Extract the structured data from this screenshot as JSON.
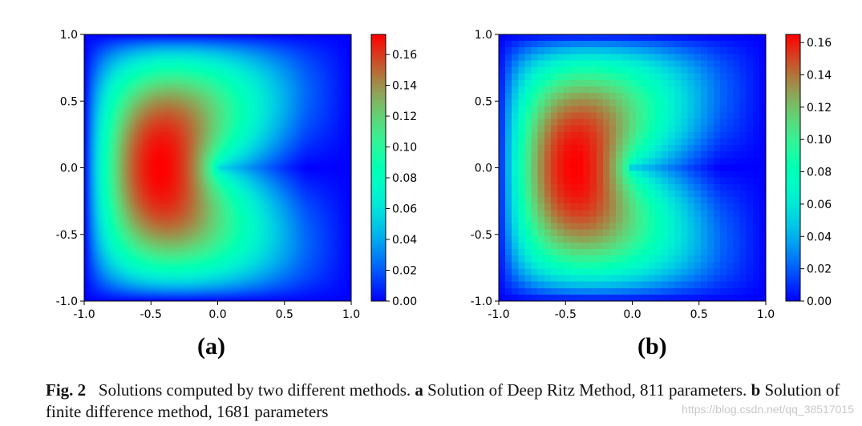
{
  "panels": [
    {
      "id": "a",
      "label": "(a)",
      "x_ticks": [
        "-1.0",
        "-0.5",
        "0.0",
        "0.5",
        "1.0"
      ],
      "y_ticks": [
        "1.0",
        "0.5",
        "0.0",
        "-0.5",
        "-1.0"
      ],
      "colorbar_ticks": [
        "0.16",
        "0.14",
        "0.12",
        "0.10",
        "0.08",
        "0.06",
        "0.04",
        "0.02",
        "0.00"
      ],
      "colorbar_range": [
        0.0,
        0.173
      ],
      "rendering": "smooth"
    },
    {
      "id": "b",
      "label": "(b)",
      "x_ticks": [
        "-1.0",
        "-0.5",
        "0.0",
        "0.5",
        "1.0"
      ],
      "y_ticks": [
        "1.0",
        "0.5",
        "0.0",
        "-0.5",
        "-1.0"
      ],
      "colorbar_ticks": [
        "0.16",
        "0.14",
        "0.12",
        "0.10",
        "0.08",
        "0.06",
        "0.04",
        "0.02",
        "0.00"
      ],
      "colorbar_range": [
        0.0,
        0.165
      ],
      "rendering": "grid 41x41"
    }
  ],
  "caption": {
    "fig_label": "Fig. 2",
    "text_intro": "Solutions computed by two different methods.",
    "a_marker": "a",
    "a_text": "Solution of Deep Ritz Method, 811 parameters.",
    "b_marker": "b",
    "b_text": "Solution of finite difference method, 1681 parameters"
  },
  "watermark": "https://blog.csdn.net/qq_38517015",
  "colormap": "rainbow"
}
